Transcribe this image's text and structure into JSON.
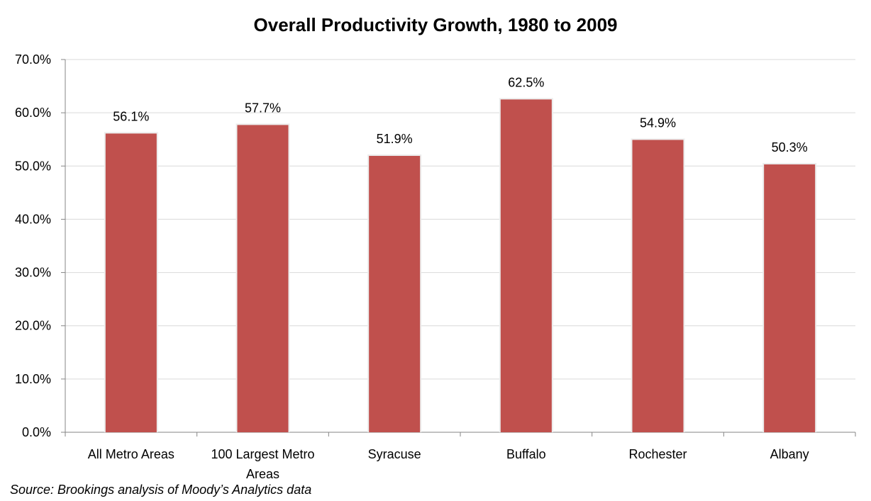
{
  "chart_data": {
    "type": "bar",
    "title": "Overall Productivity Growth, 1980 to 2009",
    "categories": [
      "All Metro Areas",
      "100 Largest Metro Areas",
      "Syracuse",
      "Buffalo",
      "Rochester",
      "Albany"
    ],
    "category_lines": [
      [
        "All Metro Areas"
      ],
      [
        "100 Largest Metro",
        "Areas"
      ],
      [
        "Syracuse"
      ],
      [
        "Buffalo"
      ],
      [
        "Rochester"
      ],
      [
        "Albany"
      ]
    ],
    "values": [
      56.1,
      57.7,
      51.9,
      62.5,
      54.9,
      50.3
    ],
    "data_labels": [
      "56.1%",
      "57.7%",
      "51.9%",
      "62.5%",
      "54.9%",
      "50.3%"
    ],
    "ylim": [
      0,
      70
    ],
    "yticks": [
      0,
      10,
      20,
      30,
      40,
      50,
      60,
      70
    ],
    "ytick_labels": [
      "0.0%",
      "10.0%",
      "20.0%",
      "30.0%",
      "40.0%",
      "50.0%",
      "60.0%",
      "70.0%"
    ],
    "grid": true,
    "bar_color": "#C0504D",
    "xlabel": "",
    "ylabel": ""
  },
  "source_note": "Source: Brookings analysis of Moody’s Analytics data"
}
